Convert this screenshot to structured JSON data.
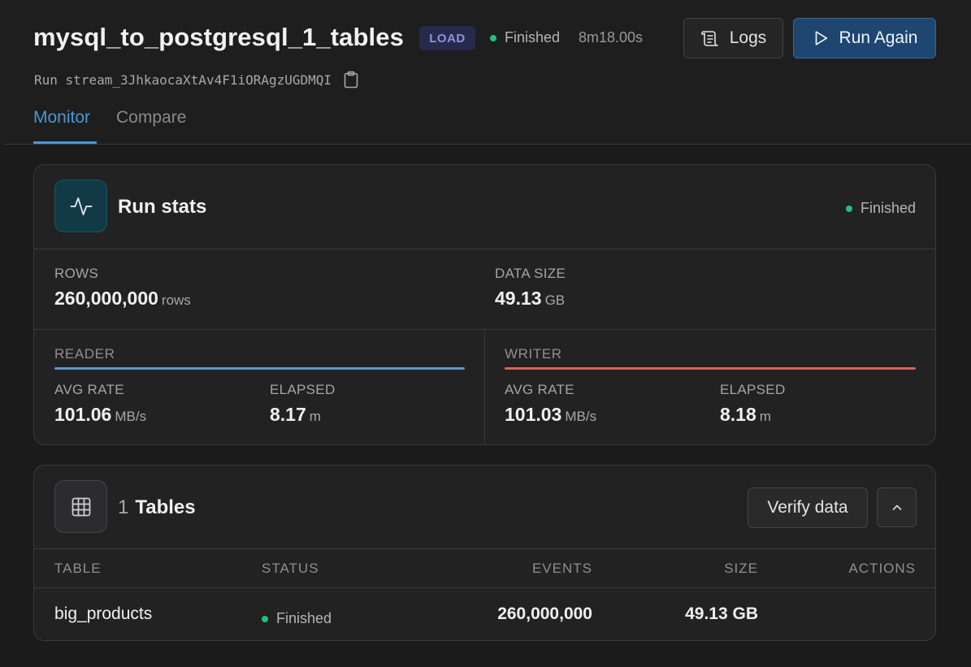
{
  "header": {
    "title": "mysql_to_postgresql_1_tables",
    "badge": "LOAD",
    "status": "Finished",
    "duration": "8m18.00s",
    "run_prefix": "Run",
    "run_id": "stream_3JhkaocaXtAv4F1iORAgzUGDMQI",
    "logs_label": "Logs",
    "run_again_label": "Run Again"
  },
  "tabs": [
    {
      "label": "Monitor",
      "active": true
    },
    {
      "label": "Compare",
      "active": false
    }
  ],
  "run_stats": {
    "title": "Run stats",
    "status": "Finished",
    "rows_label": "ROWS",
    "rows_value": "260,000,000",
    "rows_unit": "rows",
    "size_label": "DATA SIZE",
    "size_value": "49.13",
    "size_unit": "GB",
    "reader": {
      "label": "READER",
      "avg_rate_label": "AVG RATE",
      "avg_rate_value": "101.06",
      "avg_rate_unit": "MB/s",
      "elapsed_label": "ELAPSED",
      "elapsed_value": "8.17",
      "elapsed_unit": "m"
    },
    "writer": {
      "label": "WRITER",
      "avg_rate_label": "AVG RATE",
      "avg_rate_value": "101.03",
      "avg_rate_unit": "MB/s",
      "elapsed_label": "ELAPSED",
      "elapsed_value": "8.18",
      "elapsed_unit": "m"
    }
  },
  "tables": {
    "count": "1",
    "title": "Tables",
    "verify_label": "Verify data",
    "columns": [
      "TABLE",
      "STATUS",
      "EVENTS",
      "SIZE",
      "ACTIONS"
    ],
    "rows": [
      {
        "table": "big_products",
        "status": "Finished",
        "events": "260,000,000",
        "size": "49.13 GB"
      }
    ]
  },
  "colors": {
    "accent": "#4d95d6",
    "success": "#22c07a",
    "reader": "#5f94d6",
    "writer": "#d8625a",
    "primary_button": "#1f4670"
  },
  "icons": {
    "logs": "scroll-icon",
    "run_again": "play-icon",
    "copy": "clipboard-icon",
    "run_stats": "activity-pulse-icon",
    "tables": "table-grid-icon",
    "collapse": "chevron-up-icon"
  }
}
